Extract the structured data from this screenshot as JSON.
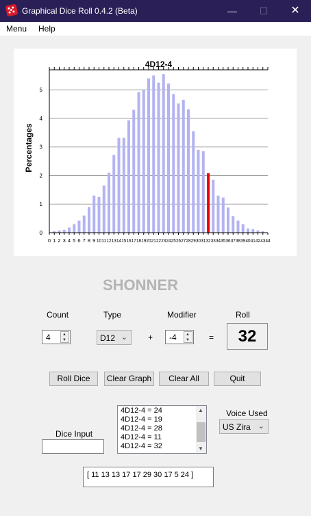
{
  "window": {
    "title": "Graphical Dice Roll 0.4.2 (Beta)",
    "minimize_glyph": "—",
    "maximize_glyph": "☐",
    "close_glyph": "✕"
  },
  "menu": {
    "items": [
      "Menu",
      "Help"
    ]
  },
  "chart_data": {
    "type": "bar",
    "title": "4D12-4",
    "ylabel": "Percentages",
    "xlabel": "",
    "ylim": [
      0,
      5.7
    ],
    "yticks": [
      0,
      1,
      2,
      3,
      4,
      5
    ],
    "grid": true,
    "categories": [
      0,
      1,
      2,
      3,
      4,
      5,
      6,
      7,
      8,
      9,
      10,
      11,
      12,
      13,
      14,
      15,
      16,
      17,
      18,
      19,
      20,
      21,
      22,
      23,
      24,
      25,
      26,
      27,
      28,
      29,
      30,
      31,
      32,
      33,
      34,
      35,
      36,
      37,
      38,
      39,
      40,
      41,
      42,
      43,
      44
    ],
    "values": [
      0,
      0.05,
      0.08,
      0.1,
      0.18,
      0.3,
      0.42,
      0.6,
      0.9,
      1.3,
      1.25,
      1.65,
      2.1,
      2.72,
      3.32,
      3.32,
      3.93,
      4.3,
      4.92,
      5.0,
      5.4,
      5.5,
      5.25,
      5.55,
      5.22,
      4.85,
      4.52,
      4.65,
      4.32,
      3.55,
      2.9,
      2.85,
      2.08,
      1.85,
      1.3,
      1.23,
      0.88,
      0.58,
      0.42,
      0.3,
      0.15,
      0.12,
      0.08,
      0.05,
      0
    ],
    "highlight_index": 32,
    "bar_color": "#b3b3f2",
    "highlight_color": "#ee0000"
  },
  "logo": {
    "text": "SHONNER"
  },
  "controls": {
    "count_label": "Count",
    "count_value": "4",
    "type_label": "Type",
    "type_value": "D12",
    "plus_sign": "+",
    "modifier_label": "Modifier",
    "modifier_value": "-4",
    "equals_sign": "=",
    "roll_label": "Roll",
    "roll_value": "32"
  },
  "buttons": {
    "roll_dice": "Roll Dice",
    "clear_graph": "Clear Graph",
    "clear_all": "Clear All",
    "quit": "Quit"
  },
  "history": {
    "items": [
      "4D12-4 = 24",
      "4D12-4 = 19",
      "4D12-4 = 28",
      "4D12-4 = 11",
      "4D12-4 = 32"
    ]
  },
  "voice": {
    "label": "Voice Used",
    "value": "US Zira"
  },
  "dice_input": {
    "label": "Dice Input",
    "value": ""
  },
  "result": {
    "text": "[ 11 13 13 17 17 29 30 17 5 24 ]"
  }
}
